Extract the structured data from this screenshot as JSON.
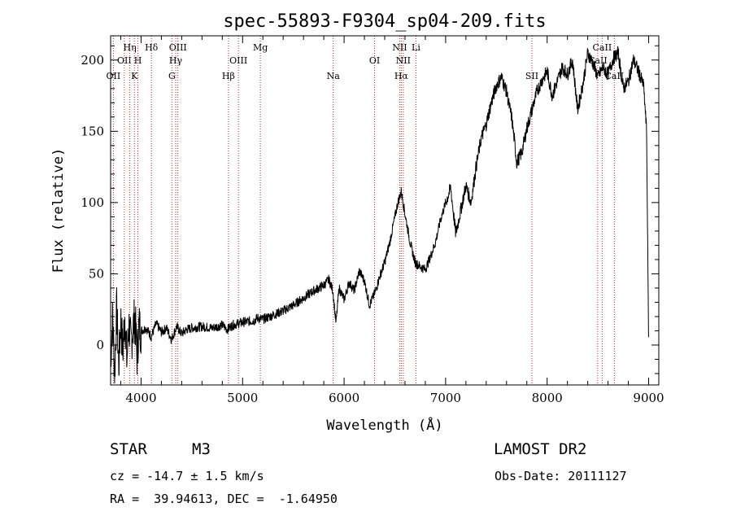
{
  "chart_data": {
    "type": "line",
    "title": "spec-55893-F9304_sp04-209.fits",
    "xlabel": "Wavelength (Å)",
    "ylabel": "Flux (relative)",
    "xlim": [
      3700,
      9100
    ],
    "ylim": [
      -28,
      217
    ],
    "xticks": [
      4000,
      5000,
      6000,
      7000,
      8000,
      9000
    ],
    "yticks": [
      0,
      50,
      100,
      150,
      200
    ],
    "grid": false,
    "line_color": "#000000",
    "marker_color": "#b03030",
    "series": [
      {
        "x": [
          3700,
          3720,
          3740,
          3760,
          3780,
          3800,
          3820,
          3840,
          3860,
          3880,
          3900,
          3920,
          3940,
          3960,
          3980,
          4000,
          4050,
          4100,
          4150,
          4200,
          4250,
          4300,
          4350,
          4400,
          4450,
          4500,
          4600,
          4700,
          4800,
          4850,
          4900,
          5000,
          5100,
          5150,
          5200,
          5300,
          5400,
          5500,
          5600,
          5700,
          5800,
          5850,
          5890,
          5920,
          5950,
          6000,
          6050,
          6100,
          6150,
          6200,
          6250,
          6300,
          6350,
          6400,
          6450,
          6500,
          6530,
          6563,
          6600,
          6650,
          6700,
          6750,
          6800,
          6850,
          6900,
          6950,
          7000,
          7050,
          7100,
          7150,
          7200,
          7250,
          7300,
          7350,
          7400,
          7450,
          7500,
          7550,
          7600,
          7620,
          7650,
          7680,
          7700,
          7750,
          7800,
          7850,
          7900,
          7950,
          8000,
          8050,
          8100,
          8150,
          8200,
          8250,
          8300,
          8350,
          8400,
          8450,
          8500,
          8550,
          8600,
          8650,
          8700,
          8750,
          8800,
          8850,
          8900,
          8950,
          8980,
          9000
        ],
        "y": [
          -10,
          20,
          -20,
          25,
          -15,
          18,
          -5,
          22,
          -12,
          15,
          0,
          12,
          20,
          -8,
          14,
          10,
          12,
          6,
          15,
          9,
          12,
          4,
          13,
          8,
          11,
          12,
          13,
          12,
          14,
          11,
          14,
          16,
          17,
          19,
          18,
          21,
          24,
          28,
          33,
          38,
          42,
          46,
          38,
          15,
          40,
          32,
          44,
          38,
          52,
          45,
          28,
          36,
          48,
          58,
          72,
          90,
          100,
          108,
          92,
          72,
          58,
          55,
          53,
          62,
          72,
          88,
          100,
          110,
          78,
          95,
          112,
          100,
          125,
          145,
          155,
          170,
          182,
          188,
          178,
          170,
          160,
          142,
          128,
          135,
          152,
          165,
          178,
          186,
          192,
          175,
          185,
          195,
          190,
          200,
          165,
          182,
          205,
          198,
          188,
          195,
          190,
          201,
          205,
          180,
          185,
          200,
          192,
          182,
          150,
          0
        ]
      }
    ],
    "line_markers": [
      {
        "w": 3727,
        "row": 3,
        "label": "OII"
      },
      {
        "w": 3835,
        "row": 2,
        "label": "OII"
      },
      {
        "w": 3889,
        "row": 1,
        "label": "Hη"
      },
      {
        "w": 3934,
        "row": 3,
        "label": "K"
      },
      {
        "w": 3969,
        "row": 2,
        "label": "H"
      },
      {
        "w": 4102,
        "row": 1,
        "label": "Hδ"
      },
      {
        "w": 4304,
        "row": 3,
        "label": "G"
      },
      {
        "w": 4341,
        "row": 2,
        "label": "Hγ"
      },
      {
        "w": 4363,
        "row": 1,
        "label": "OIII"
      },
      {
        "w": 4861,
        "row": 3,
        "label": "Hβ"
      },
      {
        "w": 4959,
        "row": 2,
        "label": "OIII"
      },
      {
        "w": 5175,
        "row": 1,
        "label": "Mg"
      },
      {
        "w": 5893,
        "row": 3,
        "label": "Na"
      },
      {
        "w": 6300,
        "row": 2,
        "label": "OI"
      },
      {
        "w": 6548,
        "row": 1,
        "label": "NII"
      },
      {
        "w": 6563,
        "row": 3,
        "label": "Hα"
      },
      {
        "w": 6583,
        "row": 2,
        "label": "NII"
      },
      {
        "w": 6708,
        "row": 1,
        "label": "Li"
      },
      {
        "w": 7850,
        "row": 3,
        "label": "SII"
      },
      {
        "w": 8498,
        "row": 2,
        "label": "CaII"
      },
      {
        "w": 8542,
        "row": 1,
        "label": "CaII"
      },
      {
        "w": 8662,
        "row": 3,
        "label": "CaII"
      }
    ]
  },
  "info": {
    "object_class": "STAR",
    "subclass": "M3",
    "survey": "LAMOST DR2",
    "redshift": "cz = -14.7 ± 1.5 km/s",
    "obs_date": "Obs-Date: 20111127",
    "coords": "RA =  39.94613, DEC =  -1.64950"
  }
}
